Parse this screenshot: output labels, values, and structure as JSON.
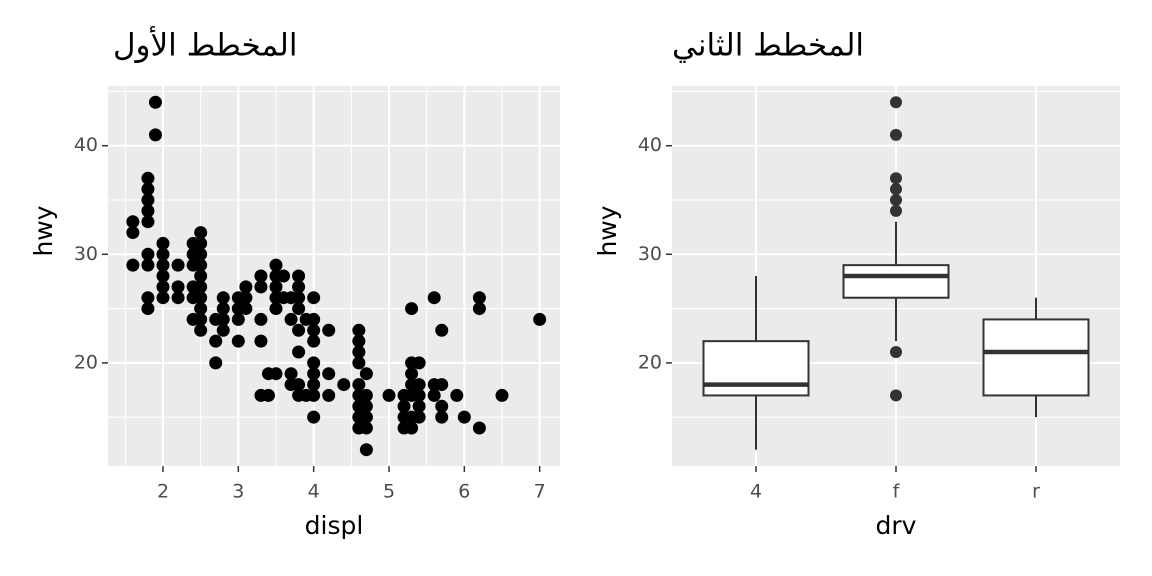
{
  "chart_data": [
    {
      "type": "scatter",
      "title": "المخطط الأول",
      "x_label": "displ",
      "y_label": "hwy",
      "x": [
        1.6,
        1.6,
        1.6,
        1.8,
        1.8,
        1.8,
        1.8,
        1.8,
        1.8,
        1.8,
        1.8,
        1.8,
        1.9,
        1.9,
        2.0,
        2.0,
        2.0,
        2.0,
        2.0,
        2.0,
        2.2,
        2.2,
        2.2,
        2.4,
        2.4,
        2.4,
        2.4,
        2.4,
        2.4,
        2.5,
        2.5,
        2.5,
        2.5,
        2.5,
        2.5,
        2.5,
        2.5,
        2.5,
        2.5,
        2.7,
        2.7,
        2.7,
        2.8,
        2.8,
        2.8,
        2.8,
        3.0,
        3.0,
        3.0,
        3.0,
        3.1,
        3.1,
        3.1,
        3.3,
        3.3,
        3.3,
        3.3,
        3.3,
        3.4,
        3.4,
        3.5,
        3.5,
        3.5,
        3.5,
        3.5,
        3.5,
        3.6,
        3.6,
        3.7,
        3.7,
        3.7,
        3.7,
        3.8,
        3.8,
        3.8,
        3.8,
        3.8,
        3.8,
        3.8,
        3.8,
        3.9,
        3.9,
        4.0,
        4.0,
        4.0,
        4.0,
        4.0,
        4.0,
        4.0,
        4.0,
        4.0,
        4.2,
        4.2,
        4.2,
        4.4,
        4.6,
        4.6,
        4.6,
        4.6,
        4.6,
        4.6,
        4.6,
        4.6,
        4.6,
        4.7,
        4.7,
        4.7,
        4.7,
        4.7,
        4.7,
        5.0,
        5.2,
        5.2,
        5.2,
        5.2,
        5.3,
        5.3,
        5.3,
        5.3,
        5.3,
        5.3,
        5.3,
        5.4,
        5.4,
        5.4,
        5.4,
        5.4,
        5.6,
        5.6,
        5.6,
        5.7,
        5.7,
        5.7,
        5.7,
        5.9,
        6.0,
        6.2,
        6.2,
        6.2,
        6.5,
        7.0
      ],
      "y": [
        33,
        32,
        29,
        37,
        36,
        35,
        34,
        33,
        30,
        29,
        26,
        25,
        44,
        41,
        31,
        30,
        29,
        28,
        27,
        26,
        29,
        27,
        26,
        31,
        30,
        29,
        27,
        26,
        24,
        32,
        31,
        30,
        29,
        28,
        27,
        26,
        25,
        24,
        23,
        24,
        22,
        20,
        26,
        25,
        24,
        23,
        26,
        25,
        24,
        22,
        27,
        26,
        25,
        28,
        27,
        24,
        22,
        17,
        17,
        19,
        29,
        28,
        27,
        26,
        25,
        19,
        28,
        26,
        26,
        24,
        19,
        18,
        28,
        27,
        26,
        25,
        23,
        21,
        18,
        17,
        24,
        17,
        26,
        24,
        23,
        22,
        20,
        19,
        18,
        17,
        15,
        23,
        19,
        17,
        18,
        23,
        22,
        21,
        20,
        18,
        17,
        16,
        15,
        14,
        19,
        17,
        16,
        15,
        14,
        12,
        17,
        17,
        16,
        15,
        14,
        25,
        20,
        19,
        18,
        17,
        15,
        14,
        20,
        18,
        17,
        16,
        15,
        26,
        18,
        17,
        23,
        18,
        16,
        15,
        17,
        15,
        26,
        25,
        14,
        17,
        24
      ],
      "color": "#000000",
      "xlim": [
        1.27,
        7.27
      ],
      "xticks": [
        2,
        3,
        4,
        5,
        6,
        7
      ],
      "ylim": [
        10.5,
        45.5
      ],
      "yticks": [
        20,
        30,
        40
      ],
      "grid": true
    },
    {
      "type": "box",
      "title": "المخطط الثاني",
      "x_label": "drv",
      "y_label": "hwy",
      "categories": [
        "4",
        "f",
        "r"
      ],
      "boxes": [
        {
          "low": 12,
          "q1": 17,
          "median": 18,
          "q3": 22,
          "high": 28,
          "outliers": []
        },
        {
          "low": 22,
          "q1": 26,
          "median": 28,
          "q3": 29,
          "high": 33,
          "outliers": [
            44,
            41,
            37,
            36,
            35,
            34,
            21,
            17
          ]
        },
        {
          "low": 15,
          "q1": 17,
          "median": 21,
          "q3": 24,
          "high": 26,
          "outliers": []
        }
      ],
      "color": "#333333",
      "ylim": [
        10.5,
        45.5
      ],
      "yticks": [
        20,
        30,
        40
      ],
      "grid": true
    }
  ]
}
